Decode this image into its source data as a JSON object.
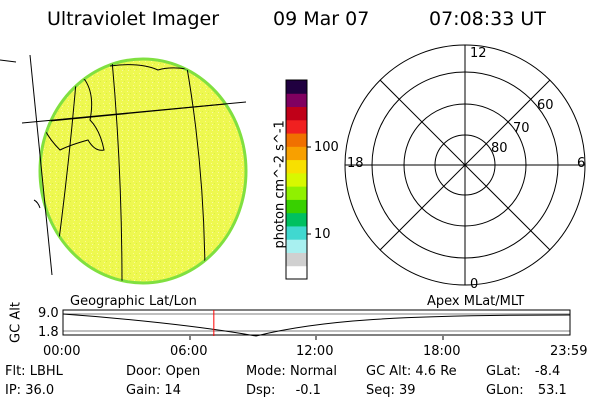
{
  "header": {
    "title": "Ultraviolet Imager",
    "date": "09 Mar 07",
    "time": "07:08:33 UT"
  },
  "colorbar": {
    "label": "photon cm^-2 s^-1",
    "tick_high": "100",
    "tick_low": "10",
    "colors": [
      "#ffffff",
      "#d0d0d0",
      "#a8f0f0",
      "#40d8d0",
      "#00c060",
      "#38d000",
      "#90f000",
      "#d8f800",
      "#f8e000",
      "#f8a000",
      "#f07000",
      "#f02020",
      "#c00018",
      "#800060",
      "#200040"
    ]
  },
  "polar_plot": {
    "label_top": "12",
    "label_left": "18",
    "label_right": "6",
    "label_bottom": "0",
    "lat_60": "60",
    "lat_70": "70",
    "lat_80": "80"
  },
  "altitude_plot": {
    "left_caption": "Geographic Lat/Lon",
    "right_caption": "Apex MLat/MLT",
    "axis_label": "GC Alt",
    "ytick_high": "9.0",
    "ytick_low": "1.8",
    "xticks": [
      "00:00",
      "06:00",
      "12:00",
      "18:00",
      "23:59"
    ],
    "current_time_marker_hours": 7.14
  },
  "status": {
    "row1": [
      {
        "label": "Flt:",
        "value": "LBHL"
      },
      {
        "label": "Door:",
        "value": "Open"
      },
      {
        "label": "Mode:",
        "value": "Normal"
      },
      {
        "label": "GC Alt:",
        "value": "4.6 Re"
      },
      {
        "label": "GLat:",
        "value": "-8.4"
      }
    ],
    "row2": [
      {
        "label": "IP:",
        "value": "36.0"
      },
      {
        "label": "Gain:",
        "value": "14"
      },
      {
        "label": "Dsp:",
        "value": "-0.1"
      },
      {
        "label": "Seq:",
        "value": "39"
      },
      {
        "label": "GLon:",
        "value": "53.1"
      }
    ]
  }
}
